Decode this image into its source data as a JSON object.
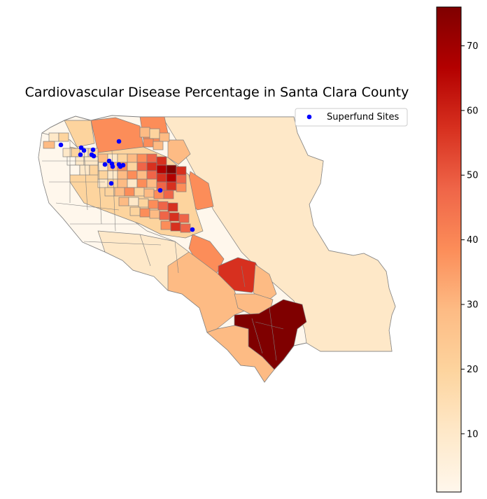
{
  "title": "Cardiovascular Disease Percentage in Santa Clara County",
  "legend": {
    "label": "Superfund Sites",
    "marker_color": "#0000ff"
  },
  "colorbar": {
    "colormap": "OrRd",
    "colors": [
      "#fff7ec",
      "#fee8c8",
      "#fdd49e",
      "#fdbb84",
      "#fc8d59",
      "#ef6548",
      "#d7301f",
      "#b30000",
      "#7f0000"
    ],
    "min": 1,
    "max": 76,
    "ticks": [
      10,
      20,
      30,
      40,
      50,
      60,
      70
    ]
  },
  "chart_data": {
    "type": "heatmap",
    "title": "Cardiovascular Disease Percentage in Santa Clara County",
    "value_range": [
      1,
      76
    ],
    "colorbar_ticks": [
      10,
      20,
      30,
      40,
      50,
      60,
      70
    ],
    "legend": [
      "Superfund Sites"
    ],
    "legend_position": "top-right",
    "grid": false
  },
  "colors": {
    "boundary": "#808080",
    "marker": "#0000ff"
  }
}
